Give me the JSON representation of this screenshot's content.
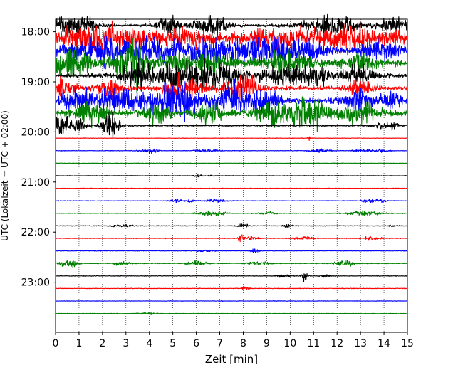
{
  "chart_data": {
    "type": "line",
    "subtype": "helicorder",
    "xlabel": "Zeit  [min]",
    "ylabel": "UTC (Lokalzeit = UTC + 02:00)",
    "xlim": [
      0,
      15
    ],
    "x_ticks": [
      0,
      1,
      2,
      3,
      4,
      5,
      6,
      7,
      8,
      9,
      10,
      11,
      12,
      13,
      14,
      15
    ],
    "y_range_hours": [
      17.75,
      24.0
    ],
    "y_tick_labels": [
      "18:00",
      "19:00",
      "20:00",
      "21:00",
      "22:00",
      "23:00"
    ],
    "y_tick_hours": [
      18,
      19,
      20,
      21,
      22,
      23
    ],
    "trace_interval_min": 15,
    "x_grid": "dotted vertical lines at every minute",
    "trace_colors": [
      "#000000",
      "#ff0000",
      "#0000ff",
      "#008000"
    ],
    "traces": [
      {
        "start": "17:45",
        "noise": 0.06,
        "events": [
          [
            0.3,
            0.5,
            0.35
          ],
          [
            1.2,
            0.6,
            0.35
          ],
          [
            4.8,
            0.5,
            0.4
          ],
          [
            6.6,
            0.7,
            0.45
          ],
          [
            11.7,
            1.2,
            0.4
          ],
          [
            14.4,
            0.6,
            0.3
          ]
        ]
      },
      {
        "start": "18:00",
        "noise": 0.12,
        "events": [
          [
            1.5,
            1.5,
            0.55
          ],
          [
            3.2,
            0.8,
            0.35
          ],
          [
            5.5,
            1.0,
            0.4
          ],
          [
            9.3,
            1.5,
            0.45
          ],
          [
            12.5,
            1.5,
            0.5
          ],
          [
            14.5,
            0.5,
            0.3
          ]
        ]
      },
      {
        "start": "18:15",
        "noise": 0.14,
        "events": [
          [
            2.0,
            1.5,
            0.55
          ],
          [
            4.2,
            0.8,
            0.4
          ],
          [
            6.3,
            1.2,
            0.5
          ],
          [
            8.5,
            1.0,
            0.45
          ],
          [
            10.2,
            1.2,
            0.5
          ],
          [
            13.8,
            0.8,
            0.4
          ]
        ]
      },
      {
        "start": "18:30",
        "noise": 0.14,
        "events": [
          [
            0.4,
            0.6,
            0.55
          ],
          [
            1.0,
            0.5,
            0.45
          ],
          [
            2.8,
            0.8,
            0.45
          ],
          [
            3.4,
            0.5,
            0.6
          ],
          [
            6.0,
            1.5,
            0.5
          ],
          [
            10.0,
            1.0,
            0.45
          ],
          [
            13.0,
            0.6,
            0.4
          ]
        ]
      },
      {
        "start": "18:45",
        "noise": 0.1,
        "events": [
          [
            3.3,
            0.6,
            0.45
          ],
          [
            5.4,
            1.4,
            0.7
          ],
          [
            7.3,
            0.7,
            0.45
          ],
          [
            9.7,
            0.9,
            0.45
          ],
          [
            11.0,
            0.8,
            0.4
          ],
          [
            12.9,
            0.6,
            0.45
          ]
        ]
      },
      {
        "start": "19:00",
        "noise": 0.09,
        "events": [
          [
            0.3,
            0.5,
            0.45
          ],
          [
            2.3,
            0.6,
            0.4
          ],
          [
            5.4,
            0.8,
            0.5
          ],
          [
            8.0,
            0.7,
            0.6
          ],
          [
            12.9,
            0.6,
            0.4
          ]
        ]
      },
      {
        "start": "19:15",
        "noise": 0.13,
        "events": [
          [
            1.0,
            0.8,
            0.5
          ],
          [
            2.6,
            0.8,
            0.45
          ],
          [
            4.3,
            1.0,
            0.5
          ],
          [
            5.4,
            0.8,
            0.55
          ],
          [
            7.6,
            0.8,
            0.7
          ],
          [
            8.9,
            0.6,
            0.5
          ],
          [
            13.0,
            0.6,
            0.4
          ],
          [
            14.3,
            0.4,
            0.35
          ]
        ]
      },
      {
        "start": "19:30",
        "noise": 0.14,
        "events": [
          [
            1.5,
            0.6,
            0.5
          ],
          [
            4.3,
            0.6,
            0.45
          ],
          [
            6.6,
            0.6,
            0.45
          ],
          [
            9.4,
            0.8,
            0.45
          ],
          [
            10.8,
            0.8,
            0.6
          ],
          [
            12.6,
            0.5,
            0.35
          ],
          [
            13.3,
            0.5,
            0.4
          ]
        ]
      },
      {
        "start": "19:45",
        "noise": 0.03,
        "events": [
          [
            0.25,
            0.35,
            0.55
          ],
          [
            1.0,
            0.3,
            0.35
          ],
          [
            2.35,
            0.35,
            0.65
          ],
          [
            14.0,
            0.4,
            0.15
          ],
          [
            14.4,
            0.2,
            0.15
          ]
        ]
      },
      {
        "start": "20:00",
        "noise": 0.012,
        "events": [
          [
            10.8,
            0.05,
            0.12
          ]
        ]
      },
      {
        "start": "20:15",
        "noise": 0.012,
        "events": [
          [
            4.0,
            0.35,
            0.12
          ],
          [
            6.4,
            0.5,
            0.08
          ],
          [
            11.3,
            0.4,
            0.1
          ],
          [
            13.1,
            0.4,
            0.07
          ],
          [
            13.9,
            0.3,
            0.06
          ]
        ]
      },
      {
        "start": "20:30",
        "noise": 0.012,
        "events": []
      },
      {
        "start": "20:45",
        "noise": 0.012,
        "events": [
          [
            6.1,
            0.15,
            0.08
          ],
          [
            6.6,
            0.1,
            0.04
          ]
        ]
      },
      {
        "start": "21:00",
        "noise": 0.012,
        "events": []
      },
      {
        "start": "21:15",
        "noise": 0.014,
        "events": [
          [
            5.2,
            0.3,
            0.08
          ],
          [
            5.8,
            0.3,
            0.06
          ],
          [
            6.9,
            0.4,
            0.07
          ],
          [
            13.5,
            0.5,
            0.08
          ],
          [
            14.0,
            0.2,
            0.05
          ]
        ]
      },
      {
        "start": "21:30",
        "noise": 0.014,
        "events": [
          [
            6.5,
            0.5,
            0.1
          ],
          [
            7.1,
            0.3,
            0.06
          ],
          [
            9.0,
            0.4,
            0.06
          ],
          [
            13.2,
            0.8,
            0.1
          ]
        ]
      },
      {
        "start": "21:45",
        "noise": 0.014,
        "events": [
          [
            2.8,
            0.5,
            0.05
          ],
          [
            8.0,
            0.2,
            0.12
          ],
          [
            9.9,
            0.2,
            0.07
          ],
          [
            14.4,
            0.2,
            0.04
          ]
        ]
      },
      {
        "start": "22:00",
        "noise": 0.014,
        "events": [
          [
            7.9,
            0.1,
            0.25
          ],
          [
            8.3,
            0.3,
            0.1
          ],
          [
            10.6,
            0.4,
            0.1
          ],
          [
            13.5,
            0.5,
            0.06
          ]
        ]
      },
      {
        "start": "22:15",
        "noise": 0.014,
        "events": [
          [
            8.5,
            0.2,
            0.08
          ],
          [
            6.3,
            0.3,
            0.05
          ]
        ]
      },
      {
        "start": "22:30",
        "noise": 0.016,
        "events": [
          [
            0.55,
            0.35,
            0.22
          ],
          [
            2.8,
            0.4,
            0.08
          ],
          [
            6.0,
            0.4,
            0.12
          ],
          [
            8.6,
            0.5,
            0.08
          ],
          [
            12.3,
            0.4,
            0.18
          ]
        ]
      },
      {
        "start": "22:45",
        "noise": 0.014,
        "events": [
          [
            9.7,
            0.3,
            0.08
          ],
          [
            10.6,
            0.12,
            0.28
          ],
          [
            11.5,
            0.2,
            0.06
          ]
        ]
      },
      {
        "start": "23:00",
        "noise": 0.014,
        "events": [
          [
            8.1,
            0.15,
            0.1
          ]
        ]
      },
      {
        "start": "23:15",
        "noise": 0.012,
        "events": []
      },
      {
        "start": "23:30",
        "noise": 0.012,
        "events": [
          [
            4.0,
            0.4,
            0.04
          ]
        ]
      }
    ]
  }
}
